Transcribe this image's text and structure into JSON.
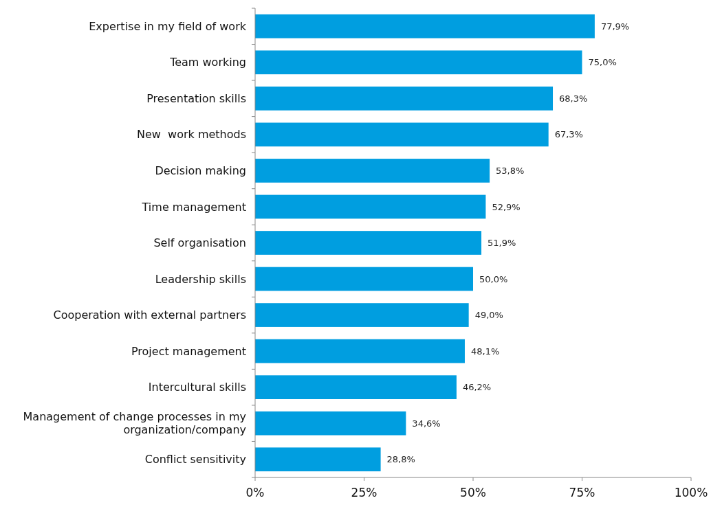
{
  "chart_data": {
    "type": "bar",
    "orientation": "horizontal",
    "categories": [
      "Expertise in my field of work",
      "Team working",
      "Presentation skills",
      "New  work methods",
      "Decision making",
      "Time management",
      "Self organisation",
      "Leadership skills",
      "Cooperation with external partners",
      "Project management",
      "Intercultural skills",
      "Management of change processes in my organization/company",
      "Conflict sensitivity"
    ],
    "values": [
      77.9,
      75.0,
      68.3,
      67.3,
      53.8,
      52.9,
      51.9,
      50.0,
      49.0,
      48.1,
      46.2,
      34.6,
      28.8
    ],
    "value_labels": [
      "77,9%",
      "75,0%",
      "68,3%",
      "67,3%",
      "53,8%",
      "52,9%",
      "51,9%",
      "50,0%",
      "49,0%",
      "48,1%",
      "46,2%",
      "34,6%",
      "28,8%"
    ],
    "color": "#009ee0",
    "xlim": [
      0,
      100
    ],
    "xticks": [
      {
        "value": 0,
        "label": "0%"
      },
      {
        "value": 25,
        "label": "25%"
      },
      {
        "value": 50,
        "label": "50%"
      },
      {
        "value": 75,
        "label": "75%"
      },
      {
        "value": 100,
        "label": "100%"
      }
    ],
    "grid": false
  }
}
